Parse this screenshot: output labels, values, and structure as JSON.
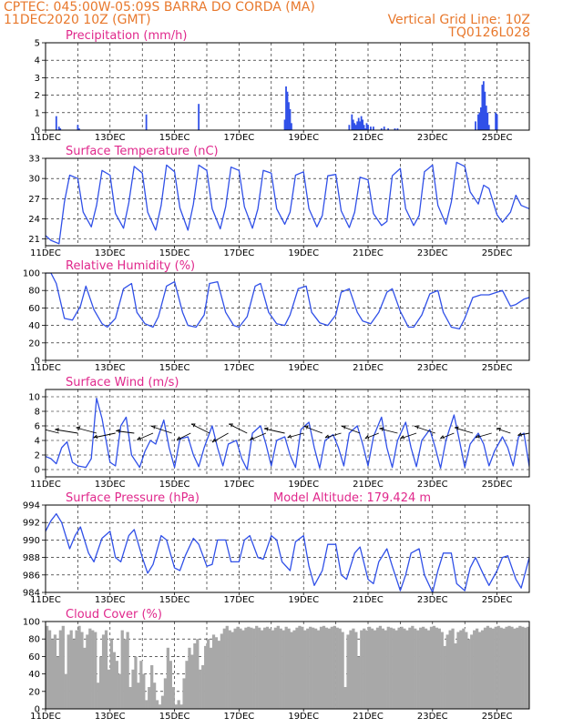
{
  "header": {
    "line1": "CPTEC:   045:00W-05:09S   BARRA DO CORDA (MA)",
    "line2": "11DEC2020 10Z (GMT)",
    "right1": "Vertical Grid Line: 10Z",
    "right2": "TQ0126L028"
  },
  "colors": {
    "header": "#e8782c",
    "panel_title": "#e0288c",
    "series": "#3050e8",
    "cloud": "#a8a8a8",
    "arrow": "#000000",
    "frame": "#000000"
  },
  "chart_data": [
    {
      "type": "bar",
      "title": "Precipitation (mm/h)",
      "x_ticks": [
        "11DEC",
        "13DEC",
        "15DEC",
        "17DEC",
        "19DEC",
        "21DEC",
        "23DEC",
        "25DEC"
      ],
      "ylim": [
        0,
        5
      ],
      "y_ticks": [
        "0",
        "1",
        "2",
        "3",
        "4",
        "5"
      ],
      "grid": "dashed horizontal",
      "x_range_hours": [
        0,
        360
      ],
      "x": [
        8,
        10,
        11,
        24,
        25,
        75,
        114,
        178,
        179,
        180,
        181,
        182,
        183,
        226,
        228,
        229,
        230,
        231,
        232,
        233,
        234,
        235,
        236,
        237,
        238,
        239,
        240,
        242,
        244,
        250,
        252,
        255,
        260,
        262,
        320,
        322,
        323,
        324,
        325,
        326,
        327,
        328,
        329,
        330,
        335,
        336
      ],
      "values": [
        0.8,
        0.2,
        0.1,
        0.3,
        0.1,
        0.9,
        1.5,
        0.6,
        2.5,
        2.2,
        1.6,
        1.2,
        0.4,
        0.3,
        0.9,
        0.6,
        0.4,
        0.3,
        0.5,
        0.7,
        0.5,
        0.8,
        0.6,
        0.3,
        0.1,
        0.4,
        0.3,
        0.2,
        0.2,
        0.1,
        0.2,
        0.1,
        0.1,
        0.1,
        0.5,
        0.9,
        1.0,
        1.3,
        2.6,
        2.8,
        2.2,
        1.4,
        1.0,
        0.3,
        1.0,
        0.9
      ]
    },
    {
      "type": "line",
      "title": "Surface Temperature (nC)",
      "x_ticks": [
        "11DEC",
        "13DEC",
        "15DEC",
        "17DEC",
        "19DEC",
        "21DEC",
        "23DEC",
        "25DEC"
      ],
      "ylim": [
        20,
        33
      ],
      "y_ticks": [
        "21",
        "24",
        "27",
        "30",
        "33"
      ],
      "grid": "dashed horizontal",
      "x_range_hours": [
        0,
        360
      ],
      "x": [
        0,
        4,
        10,
        14,
        18,
        24,
        28,
        34,
        38,
        42,
        48,
        52,
        58,
        62,
        66,
        72,
        76,
        82,
        86,
        90,
        96,
        100,
        106,
        110,
        114,
        120,
        124,
        130,
        134,
        138,
        144,
        148,
        154,
        158,
        162,
        168,
        172,
        178,
        182,
        186,
        192,
        196,
        202,
        206,
        210,
        216,
        220,
        226,
        230,
        234,
        240,
        244,
        250,
        254,
        258,
        264,
        268,
        274,
        278,
        282,
        288,
        292,
        298,
        302,
        306,
        312,
        316,
        322,
        326,
        330,
        336,
        340,
        346,
        350,
        354,
        360
      ],
      "values": [
        21.5,
        20.8,
        20.3,
        26.5,
        30.5,
        30.0,
        25.0,
        22.8,
        26.0,
        31.2,
        30.5,
        24.8,
        22.6,
        26.4,
        31.8,
        30.8,
        25.0,
        22.3,
        26.0,
        32.0,
        31.0,
        25.6,
        22.3,
        26.2,
        32.0,
        31.2,
        25.5,
        22.5,
        25.8,
        31.7,
        31.2,
        25.8,
        22.6,
        25.5,
        31.2,
        30.8,
        25.5,
        23.2,
        25.0,
        30.5,
        31.0,
        25.5,
        22.8,
        24.5,
        30.4,
        30.6,
        25.2,
        22.7,
        25.0,
        30.2,
        29.8,
        24.8,
        23.0,
        23.6,
        30.4,
        31.5,
        25.5,
        23.0,
        24.5,
        31.0,
        32.0,
        26.0,
        23.2,
        26.5,
        32.4,
        31.8,
        28.0,
        26.2,
        29.0,
        28.5,
        24.6,
        23.5,
        25.0,
        27.5,
        26.0,
        25.5
      ]
    },
    {
      "type": "line",
      "title": "Relative Humidity (%)",
      "x_ticks": [
        "11DEC",
        "13DEC",
        "15DEC",
        "17DEC",
        "19DEC",
        "21DEC",
        "23DEC",
        "25DEC"
      ],
      "ylim": [
        0,
        100
      ],
      "y_ticks": [
        "0",
        "20",
        "40",
        "60",
        "80",
        "100"
      ],
      "grid": "dashed horizontal",
      "x_range_hours": [
        0,
        360
      ],
      "x": [
        0,
        4,
        8,
        14,
        20,
        26,
        30,
        36,
        42,
        46,
        52,
        58,
        64,
        68,
        74,
        80,
        84,
        90,
        96,
        102,
        106,
        112,
        118,
        122,
        128,
        134,
        140,
        144,
        150,
        156,
        160,
        166,
        172,
        178,
        182,
        188,
        194,
        198,
        204,
        210,
        216,
        220,
        226,
        232,
        236,
        242,
        248,
        254,
        258,
        264,
        270,
        274,
        280,
        286,
        292,
        296,
        302,
        308,
        312,
        318,
        324,
        330,
        336,
        340,
        346,
        350,
        356,
        360
      ],
      "values": [
        100,
        100,
        88,
        48,
        46,
        62,
        85,
        58,
        42,
        38,
        48,
        82,
        88,
        55,
        42,
        38,
        50,
        85,
        90,
        55,
        40,
        38,
        52,
        88,
        90,
        55,
        40,
        38,
        50,
        85,
        88,
        55,
        42,
        40,
        52,
        82,
        85,
        55,
        43,
        40,
        52,
        78,
        82,
        55,
        45,
        42,
        55,
        78,
        82,
        56,
        38,
        38,
        52,
        76,
        80,
        55,
        38,
        36,
        48,
        72,
        75,
        75,
        78,
        80,
        62,
        64,
        70,
        72
      ]
    },
    {
      "type": "line",
      "title": "Surface Wind (m/s)",
      "x_ticks": [
        "11DEC",
        "13DEC",
        "15DEC",
        "17DEC",
        "19DEC",
        "21DEC",
        "23DEC",
        "25DEC"
      ],
      "ylim": [
        -1,
        11
      ],
      "y_ticks": [
        "0",
        "2",
        "4",
        "6",
        "8",
        "10"
      ],
      "grid": "dashed horizontal",
      "x_range_hours": [
        0,
        360
      ],
      "x": [
        0,
        4,
        8,
        12,
        16,
        20,
        24,
        30,
        34,
        38,
        42,
        48,
        52,
        56,
        60,
        64,
        70,
        74,
        78,
        82,
        88,
        92,
        96,
        100,
        106,
        110,
        114,
        118,
        124,
        128,
        132,
        136,
        142,
        146,
        150,
        154,
        160,
        164,
        168,
        172,
        178,
        182,
        186,
        190,
        196,
        200,
        204,
        208,
        214,
        218,
        222,
        226,
        232,
        236,
        240,
        244,
        250,
        254,
        258,
        262,
        268,
        272,
        276,
        280,
        286,
        290,
        294,
        298,
        304,
        308,
        312,
        316,
        322,
        326,
        330,
        334,
        340,
        344,
        348,
        352,
        356,
        360
      ],
      "values": [
        1.8,
        1.5,
        0.8,
        3.0,
        3.8,
        1.0,
        0.5,
        0.3,
        1.5,
        9.8,
        7.0,
        1.0,
        0.5,
        6.0,
        7.2,
        2.0,
        0.3,
        2.5,
        4.0,
        3.5,
        6.8,
        3.0,
        0.3,
        4.2,
        4.5,
        2.0,
        0.4,
        3.0,
        6.0,
        3.0,
        0.5,
        3.5,
        4.0,
        1.5,
        0.0,
        5.0,
        6.0,
        3.5,
        0.5,
        4.0,
        4.5,
        2.0,
        0.3,
        5.5,
        6.5,
        3.0,
        0.2,
        4.0,
        4.8,
        3.0,
        0.5,
        5.0,
        6.0,
        3.5,
        0.5,
        4.5,
        7.2,
        3.0,
        0.3,
        4.0,
        6.5,
        3.0,
        0.4,
        4.0,
        5.5,
        3.0,
        0.2,
        4.0,
        7.5,
        4.0,
        0.3,
        3.5,
        5.0,
        3.5,
        0.5,
        2.5,
        4.5,
        3.0,
        0.5,
        4.5,
        5.0,
        0.4
      ],
      "vectors": {
        "x": [
          10,
          24,
          38,
          52,
          66,
          80,
          94,
          108,
          122,
          136,
          150,
          164,
          178,
          192,
          206,
          220,
          234,
          248,
          262,
          276,
          290,
          304,
          318,
          332,
          346,
          360
        ],
        "u": [
          -4.0,
          -5.0,
          -4.5,
          -4.8,
          -4.0,
          -3.5,
          -4.5,
          -3.0,
          -4.0,
          -3.5,
          -4.0,
          -3.5,
          -4.5,
          -3.5,
          -4.0,
          -3.5,
          -4.0,
          -3.0,
          -4.0,
          -3.5,
          -4.5,
          -3.0,
          -4.0,
          -3.5,
          -3.0,
          -2.5
        ],
        "v": [
          1.0,
          0.8,
          1.2,
          -1.0,
          0.5,
          -1.5,
          1.5,
          -1.5,
          2.0,
          -2.0,
          2.0,
          -1.5,
          1.0,
          -1.0,
          1.5,
          -1.0,
          1.5,
          -1.2,
          1.0,
          -1.2,
          1.5,
          -1.2,
          1.2,
          -1.0,
          1.0,
          -0.5
        ]
      }
    },
    {
      "type": "line",
      "title": "Surface Pressure (hPa)",
      "annotation": "Model Altitude: 179.424  m",
      "x_ticks": [
        "11DEC",
        "13DEC",
        "15DEC",
        "17DEC",
        "19DEC",
        "21DEC",
        "23DEC",
        "25DEC"
      ],
      "ylim": [
        984,
        994
      ],
      "y_ticks": [
        "984",
        "986",
        "988",
        "990",
        "992",
        "994"
      ],
      "grid": "dashed horizontal",
      "x_range_hours": [
        0,
        360
      ],
      "x": [
        0,
        4,
        8,
        12,
        18,
        22,
        26,
        32,
        36,
        42,
        48,
        52,
        56,
        62,
        66,
        72,
        76,
        80,
        86,
        90,
        96,
        100,
        104,
        110,
        114,
        120,
        124,
        128,
        134,
        138,
        144,
        148,
        152,
        158,
        162,
        168,
        172,
        176,
        182,
        186,
        192,
        196,
        200,
        206,
        210,
        216,
        220,
        224,
        230,
        234,
        240,
        244,
        248,
        254,
        258,
        264,
        268,
        272,
        278,
        282,
        288,
        292,
        296,
        302,
        306,
        312,
        316,
        320,
        326,
        330,
        336,
        340,
        344,
        350,
        354,
        360
      ],
      "values": [
        991.0,
        992.2,
        993.0,
        992.0,
        989.0,
        990.5,
        991.5,
        988.5,
        987.5,
        990.2,
        991.0,
        988.0,
        987.5,
        990.5,
        991.2,
        988.0,
        986.2,
        987.2,
        990.5,
        990.0,
        986.8,
        986.5,
        988.2,
        990.2,
        989.5,
        987.0,
        987.2,
        990.0,
        990.0,
        987.5,
        987.5,
        990.0,
        990.5,
        988.0,
        987.8,
        990.5,
        990.0,
        987.5,
        986.5,
        989.8,
        990.5,
        987.0,
        984.8,
        986.5,
        989.5,
        989.5,
        986.0,
        985.5,
        988.5,
        989.2,
        985.5,
        985.0,
        987.5,
        989.0,
        987.0,
        984.2,
        986.0,
        988.5,
        989.0,
        986.0,
        984.0,
        986.5,
        988.5,
        988.5,
        985.0,
        984.2,
        986.8,
        988.0,
        986.0,
        984.8,
        986.5,
        988.0,
        988.2,
        985.5,
        984.5,
        988.0
      ]
    },
    {
      "type": "bar",
      "title": "Cloud Cover (%)",
      "x_ticks": [
        "11DEC",
        "13DEC",
        "15DEC",
        "17DEC",
        "19DEC",
        "21DEC",
        "23DEC",
        "25DEC"
      ],
      "ylim": [
        0,
        100
      ],
      "y_ticks": [
        "0",
        "20",
        "40",
        "60",
        "80",
        "100"
      ],
      "grid": "dashed horizontal",
      "x_range_hours": [
        0,
        360
      ],
      "step_hours": 2,
      "values": [
        95,
        90,
        80,
        85,
        60,
        90,
        95,
        40,
        85,
        90,
        80,
        90,
        95,
        88,
        70,
        85,
        92,
        90,
        88,
        30,
        60,
        85,
        90,
        45,
        80,
        65,
        55,
        40,
        90,
        80,
        88,
        25,
        45,
        60,
        30,
        55,
        40,
        10,
        25,
        50,
        30,
        10,
        5,
        15,
        35,
        70,
        55,
        25,
        5,
        10,
        5,
        35,
        55,
        70,
        62,
        75,
        80,
        45,
        50,
        72,
        80,
        70,
        85,
        82,
        78,
        86,
        92,
        95,
        90,
        88,
        92,
        94,
        92,
        90,
        93,
        94,
        93,
        92,
        95,
        93,
        90,
        93,
        94,
        92,
        90,
        93,
        95,
        92,
        90,
        94,
        92,
        88,
        90,
        93,
        95,
        94,
        90,
        92,
        94,
        93,
        92,
        90,
        94,
        95,
        93,
        92,
        94,
        95,
        93,
        92,
        88,
        25,
        85,
        90,
        92,
        88,
        60,
        90,
        92,
        90,
        94,
        92,
        90,
        93,
        95,
        92,
        90,
        94,
        93,
        92,
        90,
        93,
        94,
        92,
        90,
        93,
        95,
        92,
        90,
        93,
        94,
        92,
        90,
        94,
        95,
        93,
        92,
        88,
        72,
        85,
        90,
        92,
        75,
        88,
        90,
        92,
        88,
        80,
        85,
        90,
        92,
        88,
        90,
        93,
        95,
        93,
        92,
        94,
        95,
        93,
        92,
        94,
        95,
        94,
        92,
        93,
        95,
        94,
        93,
        94,
        95
      ]
    }
  ]
}
